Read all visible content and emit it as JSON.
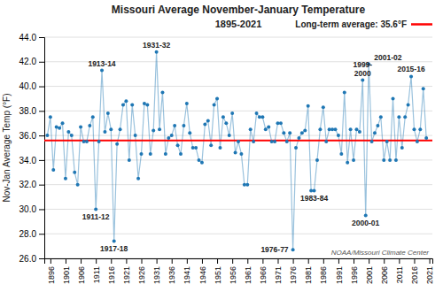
{
  "chart_data": {
    "type": "line",
    "title": "Missouri Average November-January Temperature",
    "subtitle": "1895-2021",
    "ylabel": "Nov-Jan Average Temp (°F)",
    "marker": "circle",
    "grid": "y",
    "x": [
      1895,
      1896,
      1897,
      1898,
      1899,
      1900,
      1901,
      1902,
      1903,
      1904,
      1905,
      1906,
      1907,
      1908,
      1909,
      1910,
      1911,
      1912,
      1913,
      1914,
      1915,
      1916,
      1917,
      1918,
      1919,
      1920,
      1921,
      1922,
      1923,
      1924,
      1925,
      1926,
      1927,
      1928,
      1929,
      1930,
      1931,
      1932,
      1933,
      1934,
      1935,
      1936,
      1937,
      1938,
      1939,
      1940,
      1941,
      1942,
      1943,
      1944,
      1945,
      1946,
      1947,
      1948,
      1949,
      1950,
      1951,
      1952,
      1953,
      1954,
      1955,
      1956,
      1957,
      1958,
      1959,
      1960,
      1961,
      1962,
      1963,
      1964,
      1965,
      1966,
      1967,
      1968,
      1969,
      1970,
      1971,
      1972,
      1973,
      1974,
      1975,
      1976,
      1977,
      1978,
      1979,
      1980,
      1981,
      1982,
      1983,
      1984,
      1985,
      1986,
      1987,
      1988,
      1989,
      1990,
      1991,
      1992,
      1993,
      1994,
      1995,
      1996,
      1997,
      1998,
      1999,
      2000,
      2001,
      2002,
      2003,
      2004,
      2005,
      2006,
      2007,
      2008,
      2009,
      2010,
      2011,
      2012,
      2013,
      2014,
      2015,
      2016,
      2017,
      2018,
      2019,
      2020
    ],
    "values": [
      36.0,
      37.5,
      33.2,
      36.7,
      36.6,
      37.0,
      32.5,
      36.3,
      36.0,
      33.0,
      32.0,
      36.7,
      35.5,
      35.5,
      36.8,
      37.5,
      30.0,
      35.5,
      41.3,
      36.3,
      37.8,
      36.5,
      27.4,
      35.3,
      36.5,
      38.5,
      38.8,
      34.0,
      38.5,
      36.0,
      32.5,
      34.5,
      38.6,
      38.5,
      34.5,
      36.4,
      42.8,
      36.5,
      39.5,
      34.5,
      35.8,
      36.0,
      36.8,
      35.2,
      34.5,
      36.8,
      38.6,
      36.2,
      35.0,
      35.0,
      34.0,
      33.8,
      36.9,
      37.2,
      35.2,
      38.5,
      39.0,
      35.0,
      37.5,
      37.0,
      36.0,
      37.8,
      34.6,
      35.5,
      34.5,
      32.0,
      32.0,
      36.5,
      35.5,
      37.8,
      37.5,
      37.5,
      36.5,
      36.7,
      35.5,
      35.5,
      37.0,
      37.0,
      36.2,
      35.5,
      36.2,
      26.7,
      35.0,
      35.8,
      36.2,
      36.4,
      38.4,
      31.5,
      31.5,
      34.0,
      36.5,
      38.3,
      35.5,
      36.5,
      36.5,
      36.5,
      36.0,
      34.5,
      39.5,
      33.8,
      36.5,
      34.0,
      36.5,
      36.3,
      40.5,
      29.5,
      41.8,
      35.5,
      36.2,
      36.8,
      37.5,
      34.0,
      35.5,
      34.0,
      39.0,
      34.0,
      37.5,
      35.0,
      37.5,
      38.5,
      40.8,
      36.5,
      35.5,
      36.5,
      39.8,
      35.8
    ],
    "xlim": [
      1894,
      2022
    ],
    "xticks": [
      1896,
      1901,
      1906,
      1911,
      1916,
      1921,
      1926,
      1931,
      1936,
      1941,
      1946,
      1951,
      1956,
      1961,
      1966,
      1971,
      1976,
      1981,
      1986,
      1991,
      1996,
      2001,
      2006,
      2011,
      2016,
      2021
    ],
    "ylim": [
      26.0,
      44.0
    ],
    "yticks": [
      {
        "value": 26,
        "label": "26.0"
      },
      {
        "value": 28,
        "label": "28.0"
      },
      {
        "value": 30,
        "label": "30.0"
      },
      {
        "value": 32,
        "label": "32.0"
      },
      {
        "value": 34,
        "label": "34.0"
      },
      {
        "value": 36,
        "label": "36.0"
      },
      {
        "value": 38,
        "label": "38.0"
      },
      {
        "value": 40,
        "label": "40.0"
      },
      {
        "value": 42,
        "label": "42.0"
      },
      {
        "value": 44,
        "label": "44.0"
      }
    ],
    "average": {
      "value": 35.6,
      "label": "Long-term average: 35.6°F",
      "color": "red"
    },
    "annotations": [
      {
        "text": "1913-14",
        "x": 1913,
        "y": 41.3
      },
      {
        "text": "1911-12",
        "x": 1911,
        "y": 30.0
      },
      {
        "text": "1917-18",
        "x": 1917,
        "y": 27.4
      },
      {
        "text": "1931-32",
        "x": 1931,
        "y": 42.8
      },
      {
        "text": "1976-77",
        "x": 1976,
        "y": 26.7
      },
      {
        "text": "1983-84",
        "x": 1983,
        "y": 31.5
      },
      {
        "text": "1999-\n2000",
        "x": 1999,
        "y": 40.5
      },
      {
        "text": "2001-02",
        "x": 2001,
        "y": 41.8
      },
      {
        "text": "2000-01",
        "x": 2000,
        "y": 29.5
      },
      {
        "text": "2015-16",
        "x": 2015,
        "y": 40.8
      }
    ],
    "credit": "NOAA/Missouri Climate Center"
  }
}
